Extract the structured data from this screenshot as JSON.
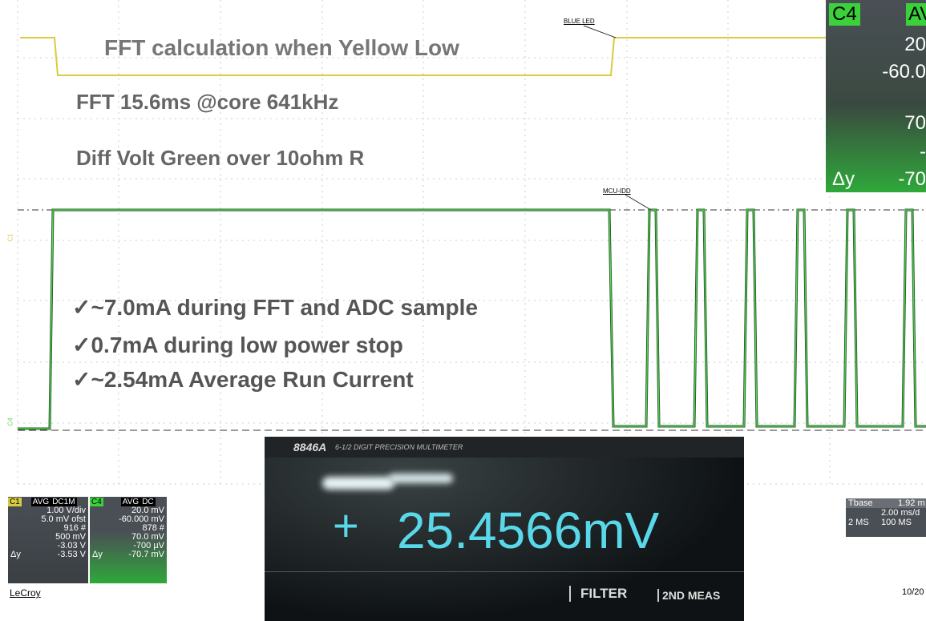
{
  "slide": {
    "title": "FFT calculation when Yellow Low",
    "line1": "FFT 15.6ms @core 641kHz",
    "line2": "Diff Volt Green over 10ohm R",
    "bullets": [
      "✓~7.0mA during FFT and ADC sample",
      "✓0.7mA during low power stop",
      "✓~2.54mA Average Run Current"
    ]
  },
  "trace_labels": {
    "blue_led": "BLUE LED",
    "mcu_idd": "MCU-IDD"
  },
  "channel_markers": [
    "C1",
    "C4"
  ],
  "c4_panel": {
    "channel": "C4",
    "mode": "AV",
    "values": [
      "20",
      "-60.0",
      "70",
      "-"
    ],
    "delta_label": "Δy",
    "delta": "-70"
  },
  "c1_box": {
    "header": [
      "C1",
      "AVG",
      "DC1M"
    ],
    "rows": [
      "1.00 V/div",
      "5.0 mV ofst",
      "916 #",
      "500 mV",
      "-3.03 V"
    ],
    "delta_label": "Δy",
    "delta": "-3.53 V"
  },
  "c4_box": {
    "header": [
      "C4",
      "AVG",
      "DC"
    ],
    "rows": [
      "20.0 mV",
      "-60.000 mV",
      "878 #",
      "70.0 mV",
      "-700 µV"
    ],
    "delta_label": "Δy",
    "delta": "-70.7 mV"
  },
  "brand": "LeCroy",
  "multimeter": {
    "model": "8846A",
    "subtitle": "6-1/2 DIGIT PRECISION MULTIMETER",
    "sign": "+",
    "reading": "25.4566mV",
    "buttons": [
      "FILTER",
      "2ND MEAS"
    ]
  },
  "timebase": {
    "rows": [
      [
        "Tbase",
        "1.92 m"
      ],
      [
        "2.00 ms/d"
      ],
      [
        "2 MS",
        "100 MS"
      ]
    ]
  },
  "date": "10/20"
}
